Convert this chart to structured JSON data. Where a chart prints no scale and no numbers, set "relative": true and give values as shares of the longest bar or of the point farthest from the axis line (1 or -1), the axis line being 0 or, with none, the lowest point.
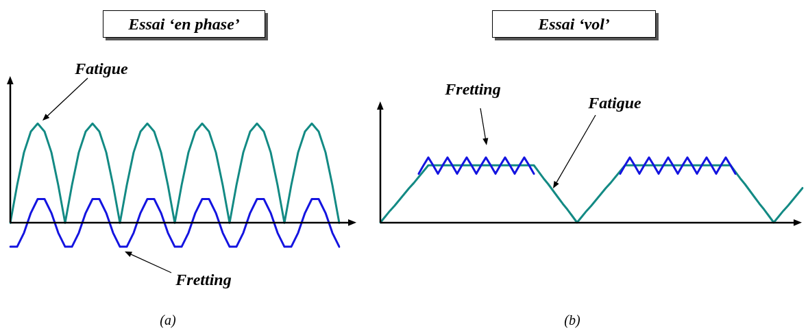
{
  "chart_data": [
    {
      "type": "line",
      "title": "Essai ‘en phase’",
      "relative": true,
      "tick_labels": false,
      "marker": "none",
      "line_style": "solid",
      "categories": [
        null,
        null,
        null,
        null,
        null,
        null,
        null,
        null,
        null,
        null,
        null,
        null,
        null,
        null,
        null,
        null,
        null,
        null,
        null,
        null,
        null,
        null,
        null,
        null,
        null,
        null,
        null,
        null,
        null,
        null,
        null,
        null,
        null,
        null,
        null,
        null,
        null,
        null,
        null,
        null,
        null,
        null,
        null,
        null,
        null,
        null,
        null,
        null,
        null
      ],
      "series": [
        {
          "color": "#138a84",
          "values": [
            0,
            0.38,
            0.71,
            0.92,
            1,
            0.92,
            0.71,
            0.38,
            0,
            0.38,
            0.71,
            0.92,
            1,
            0.92,
            0.71,
            0.38,
            0,
            0.38,
            0.71,
            0.92,
            1,
            0.92,
            0.71,
            0.38,
            0,
            0.38,
            0.71,
            0.92,
            1,
            0.92,
            0.71,
            0.38,
            0,
            0.38,
            0.71,
            0.92,
            1,
            0.92,
            0.71,
            0.38,
            0,
            0.38,
            0.71,
            0.92,
            1,
            0.92,
            0.71,
            0.38,
            0
          ]
        },
        {
          "color": "#1414e0",
          "values": [
            -0.24,
            -0.24,
            -0.1,
            0.1,
            0.24,
            0.24,
            0.1,
            -0.1,
            -0.24,
            -0.24,
            -0.1,
            0.1,
            0.24,
            0.24,
            0.1,
            -0.1,
            -0.24,
            -0.24,
            -0.1,
            0.1,
            0.24,
            0.24,
            0.1,
            -0.1,
            -0.24,
            -0.24,
            -0.1,
            0.1,
            0.24,
            0.24,
            0.1,
            -0.1,
            -0.24,
            -0.24,
            -0.1,
            0.1,
            0.24,
            0.24,
            0.1,
            -0.1,
            -0.24,
            -0.24,
            -0.1,
            0.1,
            0.24,
            0.24,
            0.1,
            -0.1,
            -0.24
          ]
        }
      ],
      "annotations": [
        "Fatigue",
        "Fretting",
        "(a)"
      ]
    },
    {
      "type": "line",
      "title": "Essai ‘vol’",
      "relative": true,
      "tick_labels": false,
      "marker": "none",
      "line_style": "solid",
      "categories": [
        null,
        null,
        null,
        null,
        null,
        null,
        null,
        null,
        null,
        null,
        null,
        null,
        null,
        null,
        null,
        null,
        null,
        null,
        null,
        null,
        null,
        null,
        null,
        null,
        null,
        null,
        null,
        null,
        null,
        null,
        null,
        null,
        null,
        null,
        null,
        null,
        null,
        null,
        null,
        null,
        null,
        null,
        null,
        null,
        null,
        null,
        null,
        null,
        null,
        null,
        null,
        null,
        null,
        null,
        null,
        null,
        null,
        null,
        null,
        null,
        null,
        null,
        null,
        null,
        null,
        null,
        null,
        null,
        null,
        null,
        null,
        null,
        null,
        null,
        null,
        null,
        null,
        null,
        null,
        null,
        null,
        null,
        null,
        null,
        null,
        null,
        null,
        null,
        null
      ],
      "series": [
        {
          "color": "#1414e0",
          "values": [
            null,
            null,
            null,
            null,
            null,
            null,
            null,
            null,
            0.75,
            0.88,
            1,
            0.88,
            0.75,
            0.88,
            1,
            0.88,
            0.75,
            0.88,
            1,
            0.88,
            0.75,
            0.88,
            1,
            0.88,
            0.75,
            0.88,
            1,
            0.88,
            0.75,
            0.88,
            1,
            0.88,
            0.75,
            null,
            null,
            null,
            null,
            null,
            null,
            null,
            null,
            null,
            null,
            null,
            null,
            null,
            null,
            null,
            null,
            null,
            null,
            null,
            null,
            null,
            null,
            null,
            null,
            null,
            null,
            null,
            null,
            null,
            null,
            null,
            null,
            null,
            null,
            null,
            null,
            null,
            null,
            null,
            null,
            null,
            null,
            null,
            null,
            null,
            null,
            null,
            null,
            null,
            null,
            null,
            null,
            null,
            null,
            null,
            null
          ]
        },
        {
          "color": "#1414e0",
          "values": [
            null,
            null,
            null,
            null,
            null,
            null,
            null,
            null,
            null,
            null,
            null,
            null,
            null,
            null,
            null,
            null,
            null,
            null,
            null,
            null,
            null,
            null,
            null,
            null,
            null,
            null,
            null,
            null,
            null,
            null,
            null,
            null,
            null,
            null,
            null,
            null,
            null,
            null,
            null,
            null,
            null,
            null,
            null,
            null,
            null,
            null,
            null,
            null,
            null,
            null,
            0.75,
            0.88,
            1,
            0.88,
            0.75,
            0.88,
            1,
            0.88,
            0.75,
            0.88,
            1,
            0.88,
            0.75,
            0.88,
            1,
            0.88,
            0.75,
            0.88,
            1,
            0.88,
            0.75,
            0.88,
            1,
            0.88,
            0.75,
            null,
            null,
            null,
            null,
            null,
            null,
            null,
            null,
            null,
            null,
            null,
            null,
            null,
            null
          ]
        },
        {
          "color": "#138a84",
          "values": [
            0,
            0.09,
            0.18,
            0.26,
            0.35,
            0.44,
            0.53,
            0.61,
            0.7,
            0.79,
            0.88,
            0.88,
            0.88,
            0.88,
            0.88,
            0.88,
            0.88,
            0.88,
            0.88,
            0.88,
            0.88,
            0.88,
            0.88,
            0.88,
            0.88,
            0.88,
            0.88,
            0.88,
            0.88,
            0.88,
            0.88,
            0.88,
            0.88,
            0.78,
            0.68,
            0.59,
            0.49,
            0.39,
            0.29,
            0.2,
            0.1,
            0,
            0.09,
            0.18,
            0.26,
            0.35,
            0.44,
            0.53,
            0.61,
            0.7,
            0.79,
            0.88,
            0.88,
            0.88,
            0.88,
            0.88,
            0.88,
            0.88,
            0.88,
            0.88,
            0.88,
            0.88,
            0.88,
            0.88,
            0.88,
            0.88,
            0.88,
            0.88,
            0.88,
            0.88,
            0.88,
            0.88,
            0.88,
            0.88,
            0.78,
            0.68,
            0.59,
            0.49,
            0.39,
            0.29,
            0.2,
            0.1,
            0,
            0.09,
            0.18,
            0.26,
            0.35,
            0.44,
            0.53
          ]
        }
      ],
      "annotations": [
        "Fretting",
        "Fatigue",
        "(b)"
      ]
    }
  ]
}
